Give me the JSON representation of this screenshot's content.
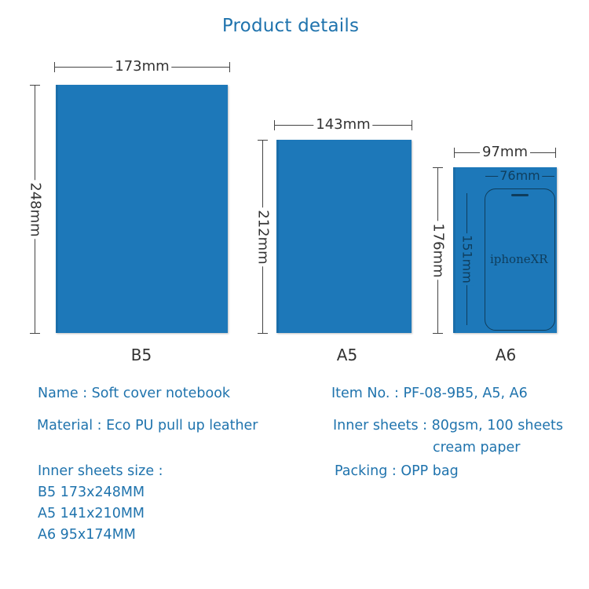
{
  "title": "Product details",
  "notebooks": [
    {
      "size": "B5",
      "width": "173mm",
      "height": "248mm"
    },
    {
      "size": "A5",
      "width": "143mm",
      "height": "212mm"
    },
    {
      "size": "A6",
      "width": "97mm",
      "height": "176mm"
    }
  ],
  "phone": {
    "name": "iphoneXR",
    "width": "76mm",
    "height": "151mm"
  },
  "specs": {
    "name": "Name : Soft cover notebook",
    "item_no": "Item No. : PF-08-9B5, A5, A6",
    "material": "Material : Eco PU pull up leather",
    "inner_sheets_line1": "Inner sheets : 80gsm, 100 sheets",
    "inner_sheets_line2": "cream paper",
    "inner_size_label": "Inner sheets size :",
    "inner_size_b5": "B5 173x248MM",
    "inner_size_a5": "A5 141x210MM",
    "inner_size_a6": "A6 95x174MM",
    "packing": "Packing : OPP bag"
  },
  "colors": {
    "notebook": "#1d78b9",
    "text_accent": "#1f73ad"
  }
}
